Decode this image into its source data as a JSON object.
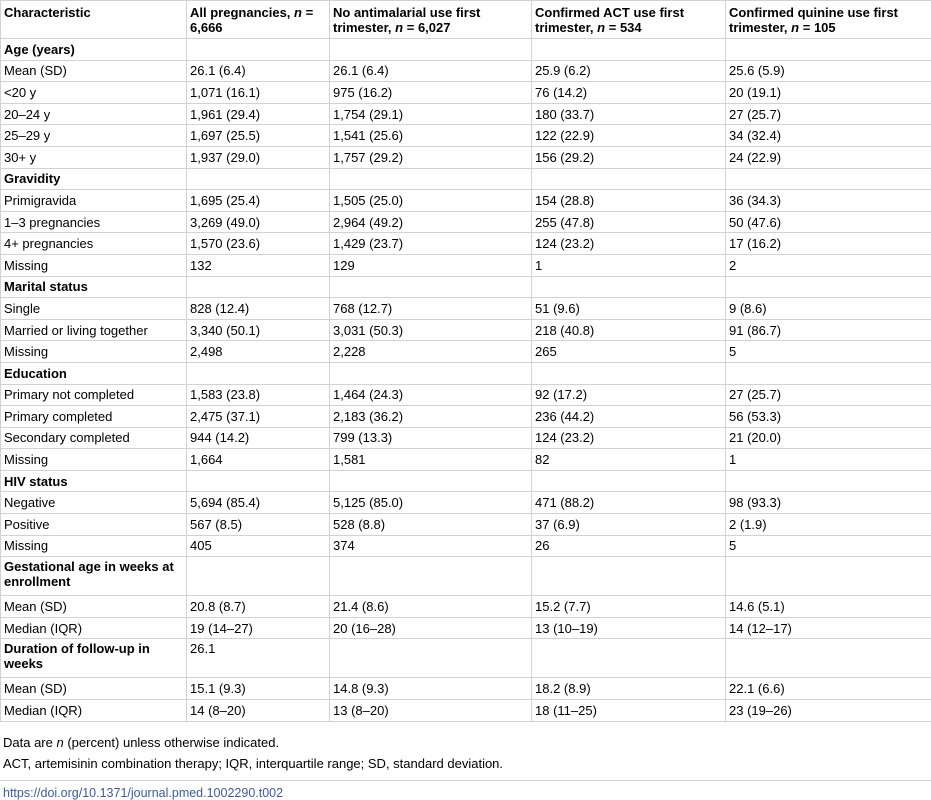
{
  "table": {
    "headers": [
      {
        "text": "Characteristic",
        "n": ""
      },
      {
        "text": "All pregnancies, ",
        "n": "= 6,666"
      },
      {
        "text": "No antimalarial use first trimester, ",
        "n": "= 6,027"
      },
      {
        "text": "Confirmed ACT use first trimester, ",
        "n": "= 534"
      },
      {
        "text": "Confirmed quinine use first trimester, ",
        "n": "= 105"
      }
    ],
    "n_symbol": "n",
    "rows": [
      {
        "section": true,
        "cells": [
          "Age (years)",
          "",
          "",
          "",
          ""
        ]
      },
      {
        "cells": [
          "Mean (SD)",
          "26.1 (6.4)",
          "26.1 (6.4)",
          "25.9 (6.2)",
          "25.6 (5.9)"
        ]
      },
      {
        "cells": [
          "<20 y",
          "1,071 (16.1)",
          "975 (16.2)",
          "76 (14.2)",
          "20 (19.1)"
        ]
      },
      {
        "cells": [
          "20–24 y",
          "1,961 (29.4)",
          "1,754 (29.1)",
          "180 (33.7)",
          "27 (25.7)"
        ]
      },
      {
        "cells": [
          "25–29 y",
          "1,697 (25.5)",
          "1,541 (25.6)",
          "122 (22.9)",
          "34 (32.4)"
        ]
      },
      {
        "cells": [
          "30+ y",
          "1,937 (29.0)",
          "1,757 (29.2)",
          "156 (29.2)",
          "24 (22.9)"
        ]
      },
      {
        "section": true,
        "cells": [
          "Gravidity",
          "",
          "",
          "",
          ""
        ]
      },
      {
        "cells": [
          "Primigravida",
          "1,695 (25.4)",
          "1,505 (25.0)",
          "154 (28.8)",
          "36 (34.3)"
        ]
      },
      {
        "cells": [
          "1–3 pregnancies",
          "3,269 (49.0)",
          "2,964 (49.2)",
          "255 (47.8)",
          "50 (47.6)"
        ]
      },
      {
        "cells": [
          "4+ pregnancies",
          "1,570 (23.6)",
          "1,429 (23.7)",
          "124 (23.2)",
          "17 (16.2)"
        ]
      },
      {
        "cells": [
          "Missing",
          "132",
          "129",
          "1",
          "2"
        ]
      },
      {
        "section": true,
        "cells": [
          "Marital status",
          "",
          "",
          "",
          ""
        ]
      },
      {
        "cells": [
          "Single",
          "828 (12.4)",
          "768 (12.7)",
          "51 (9.6)",
          "9 (8.6)"
        ]
      },
      {
        "cells": [
          "Married or living together",
          "3,340 (50.1)",
          "3,031 (50.3)",
          "218 (40.8)",
          "91 (86.7)"
        ]
      },
      {
        "cells": [
          "Missing",
          "2,498",
          "2,228",
          "265",
          "5"
        ]
      },
      {
        "section": true,
        "cells": [
          "Education",
          "",
          "",
          "",
          ""
        ]
      },
      {
        "cells": [
          "Primary not completed",
          "1,583 (23.8)",
          "1,464 (24.3)",
          "92 (17.2)",
          "27 (25.7)"
        ]
      },
      {
        "cells": [
          "Primary completed",
          "2,475 (37.1)",
          "2,183 (36.2)",
          "236 (44.2)",
          "56 (53.3)"
        ]
      },
      {
        "cells": [
          "Secondary completed",
          "944 (14.2)",
          "799 (13.3)",
          "124 (23.2)",
          "21 (20.0)"
        ]
      },
      {
        "cells": [
          "Missing",
          "1,664",
          "1,581",
          "82",
          "1"
        ]
      },
      {
        "section": true,
        "cells": [
          "HIV status",
          "",
          "",
          "",
          ""
        ]
      },
      {
        "cells": [
          "Negative",
          "5,694 (85.4)",
          "5,125 (85.0)",
          "471 (88.2)",
          "98 (93.3)"
        ]
      },
      {
        "cells": [
          "Positive",
          "567 (8.5)",
          "528 (8.8)",
          "37 (6.9)",
          "2 (1.9)"
        ]
      },
      {
        "cells": [
          "Missing",
          "405",
          "374",
          "26",
          "5"
        ]
      },
      {
        "section": true,
        "tall": true,
        "cells": [
          "Gestational age in weeks at enrollment",
          "",
          "",
          "",
          ""
        ]
      },
      {
        "cells": [
          "Mean (SD)",
          "20.8 (8.7)",
          "21.4 (8.6)",
          "15.2 (7.7)",
          "14.6 (5.1)"
        ]
      },
      {
        "cells": [
          "Median (IQR)",
          "19 (14–27)",
          "20 (16–28)",
          "13 (10–19)",
          "14 (12–17)"
        ]
      },
      {
        "section": true,
        "tall": true,
        "cells": [
          "Duration of follow-up in weeks",
          "26.1",
          "",
          "",
          ""
        ]
      },
      {
        "cells": [
          "Mean (SD)",
          "15.1 (9.3)",
          "14.8 (9.3)",
          "18.2 (8.9)",
          "22.1 (6.6)"
        ]
      },
      {
        "cells": [
          "Median (IQR)",
          "14 (8–20)",
          "13 (8–20)",
          "18 (11–25)",
          "23 (19–26)"
        ]
      }
    ]
  },
  "notes": {
    "note1_pre": "Data are ",
    "note1_em": "n",
    "note1_post": " (percent) unless otherwise indicated.",
    "note2": "ACT, artemisinin combination therapy; IQR, interquartile range; SD, standard deviation."
  },
  "doi": "https://doi.org/10.1371/journal.pmed.1002290.t002"
}
